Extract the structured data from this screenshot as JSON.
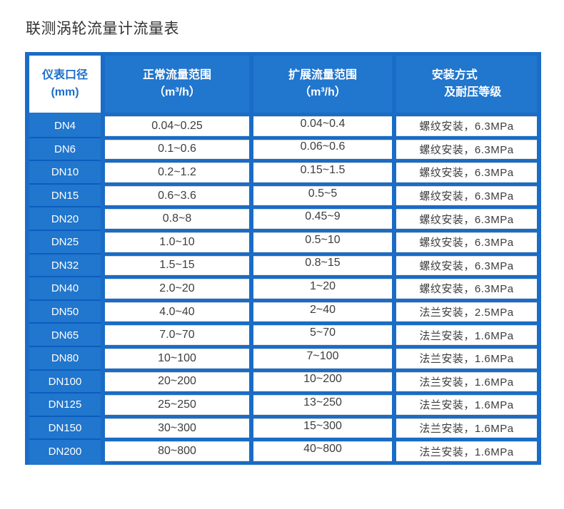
{
  "page": {
    "title": "联测涡轮流量计流量表"
  },
  "table": {
    "header": {
      "col1": {
        "line1": "仪表口径",
        "line2": "(mm)"
      },
      "col2": {
        "line1": "正常流量范围",
        "line2": "（m³/h）"
      },
      "col3": {
        "line1": "扩展流量范围",
        "line2": "（m³/h）"
      },
      "col4": {
        "line1": "安装方式",
        "line2": "及耐压等级"
      }
    }
  },
  "chart_data": {
    "type": "table",
    "title": "联测涡轮流量计流量表",
    "columns": [
      "仪表口径(mm)",
      "正常流量范围（m³/h）",
      "扩展流量范围（m³/h）",
      "安装方式及耐压等级"
    ],
    "rows": [
      [
        "DN4",
        "0.04~0.25",
        "0.04~0.4",
        "螺纹安装，6.3MPa"
      ],
      [
        "DN6",
        "0.1~0.6",
        "0.06~0.6",
        "螺纹安装，6.3MPa"
      ],
      [
        "DN10",
        "0.2~1.2",
        "0.15~1.5",
        "螺纹安装，6.3MPa"
      ],
      [
        "DN15",
        "0.6~3.6",
        "0.5~5",
        "螺纹安装，6.3MPa"
      ],
      [
        "DN20",
        "0.8~8",
        "0.45~9",
        "螺纹安装，6.3MPa"
      ],
      [
        "DN25",
        "1.0~10",
        "0.5~10",
        "螺纹安装，6.3MPa"
      ],
      [
        "DN32",
        "1.5~15",
        "0.8~15",
        "螺纹安装，6.3MPa"
      ],
      [
        "DN40",
        "2.0~20",
        "1~20",
        "螺纹安装，6.3MPa"
      ],
      [
        "DN50",
        "4.0~40",
        "2~40",
        "法兰安装，2.5MPa"
      ],
      [
        "DN65",
        "7.0~70",
        "5~70",
        "法兰安装，1.6MPa"
      ],
      [
        "DN80",
        "10~100",
        "7~100",
        "法兰安装，1.6MPa"
      ],
      [
        "DN100",
        "20~200",
        "10~200",
        "法兰安装，1.6MPa"
      ],
      [
        "DN125",
        "25~250",
        "13~250",
        "法兰安装，1.6MPa"
      ],
      [
        "DN150",
        "30~300",
        "15~300",
        "法兰安装，1.6MPa"
      ],
      [
        "DN200",
        "80~800",
        "40~800",
        "法兰安装，1.6MPa"
      ]
    ]
  },
  "colors": {
    "cell_blue": "#2176cd",
    "frame_blue": "#1a6cc6",
    "separator_blue": "#0b5dbe",
    "header_text": "#ffffff",
    "first_header_text": "#1a6ec9",
    "value_text": "#3d3d3d",
    "title_text": "#333333"
  }
}
